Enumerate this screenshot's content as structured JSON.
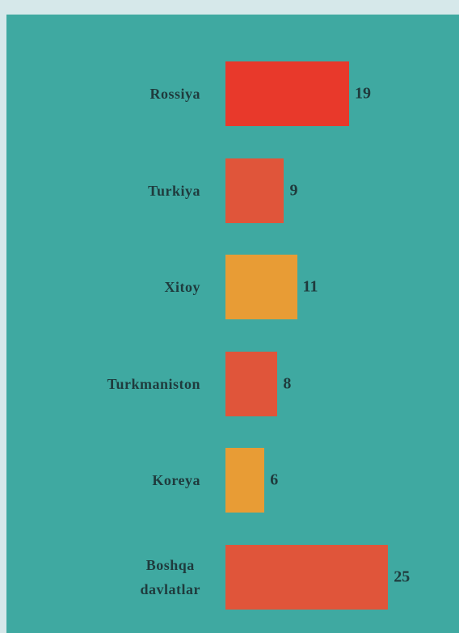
{
  "chart_data": {
    "type": "bar",
    "orientation": "horizontal",
    "categories": [
      "Rossiya",
      "Turkiya",
      "Xitoy",
      "Turkmaniston",
      "Koreya",
      "Boshqa davlatlar"
    ],
    "values": [
      19,
      9,
      11,
      8,
      6,
      25
    ],
    "colors": [
      "#e8392b",
      "#e0553a",
      "#e89c35",
      "#e0553a",
      "#e89c35",
      "#e0553a"
    ]
  }
}
